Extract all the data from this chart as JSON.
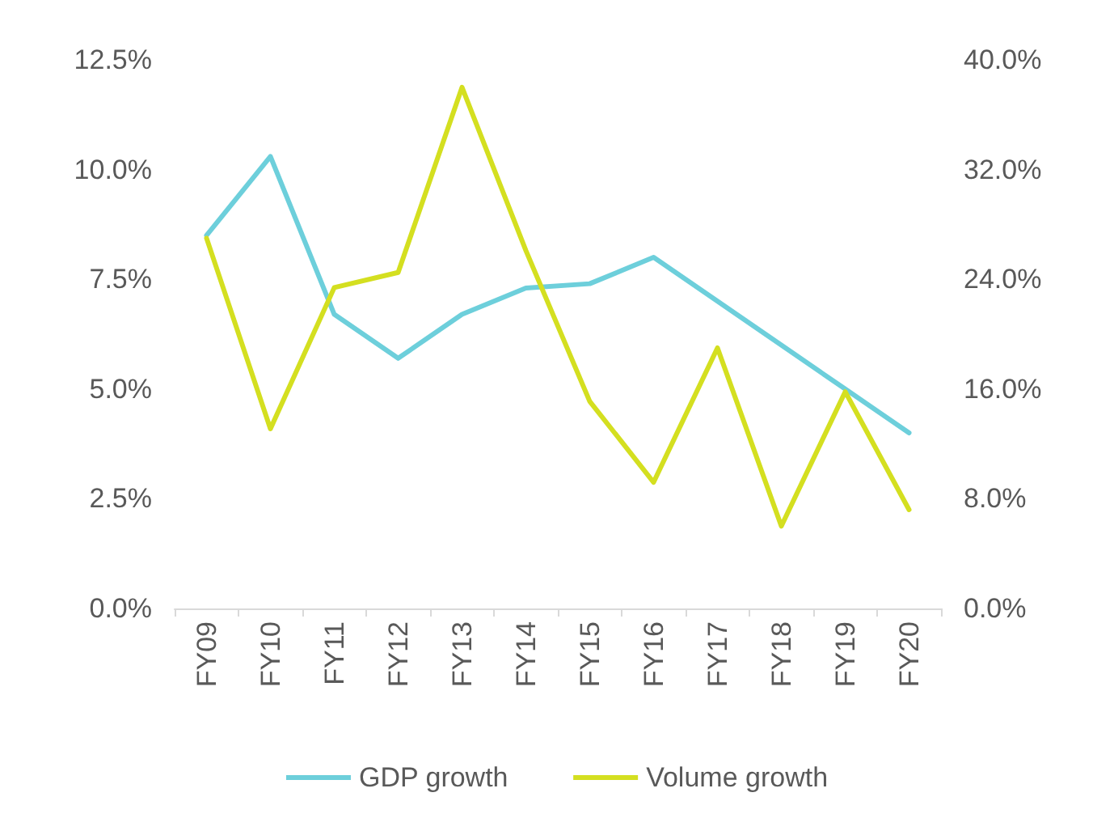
{
  "chart_data": {
    "type": "line",
    "categories": [
      "FY09",
      "FY10",
      "FY11",
      "FY12",
      "FY13",
      "FY14",
      "FY15",
      "FY16",
      "FY17",
      "FY18",
      "FY19",
      "FY20"
    ],
    "series": [
      {
        "name": "GDP growth",
        "color": "#6dcfdb",
        "values": [
          8.5,
          10.3,
          6.7,
          5.7,
          6.7,
          7.3,
          7.4,
          8.0,
          7.0,
          6.0,
          5.0,
          4.0
        ]
      },
      {
        "name": "Volume growth",
        "color": "#d4df20",
        "axis": "y2",
        "values": [
          27.0,
          13.1,
          23.4,
          24.5,
          38.0,
          26.1,
          15.1,
          9.2,
          19.0,
          6.0,
          15.8,
          7.2
        ]
      }
    ],
    "ylim": [
      0,
      12.5
    ],
    "yticks": [
      {
        "value": 0,
        "label": "0.0%"
      },
      {
        "value": 2.5,
        "label": "2.5%"
      },
      {
        "value": 5,
        "label": "5.0%"
      },
      {
        "value": 7.5,
        "label": "7.5%"
      },
      {
        "value": 10,
        "label": "10.0%"
      },
      {
        "value": 12.5,
        "label": "12.5%"
      }
    ],
    "y2lim": [
      0,
      40
    ],
    "y2ticks": [
      {
        "value": 0,
        "label": "0.0%"
      },
      {
        "value": 8,
        "label": "8.0%"
      },
      {
        "value": 16,
        "label": "16.0%"
      },
      {
        "value": 24,
        "label": "24.0%"
      },
      {
        "value": 32,
        "label": "32.0%"
      },
      {
        "value": 40,
        "label": "40.0%"
      }
    ],
    "grid": false,
    "legend": "bottom",
    "marker": "none",
    "line_style": "solid"
  }
}
